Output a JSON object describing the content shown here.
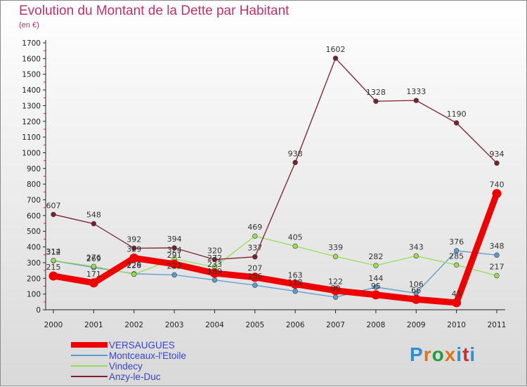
{
  "header": {
    "title": "Evolution du Montant de la Dette par Habitant",
    "unit": "(en €)"
  },
  "brand": {
    "text": "Proxiti",
    "colors": [
      "#2a8fd6",
      "#e0731c",
      "#1f9e3a",
      "#e0731c",
      "#2a8fd6",
      "#d12a2a",
      "#2a8fd6"
    ]
  },
  "chart_data": {
    "type": "line",
    "title": "Evolution du Montant de la Dette par Habitant",
    "xlabel": "",
    "ylabel": "(en €)",
    "categories": [
      "2000",
      "2001",
      "2002",
      "2003",
      "2004",
      "2005",
      "2006",
      "2007",
      "2008",
      "2009",
      "2010",
      "2011"
    ],
    "ylim": [
      0,
      1700
    ],
    "yticks": [
      0,
      100,
      200,
      300,
      400,
      500,
      600,
      700,
      800,
      900,
      1000,
      1100,
      1200,
      1300,
      1400,
      1500,
      1600,
      1700
    ],
    "grid": false,
    "legend_position": "bottom",
    "series": [
      {
        "name": "VERSAUGUES",
        "color": "#ee0000",
        "width": 9,
        "values": [
          215,
          171,
          329,
          291,
          233,
          207,
          163,
          122,
          95,
          66,
          45,
          740
        ],
        "labels": [
          "215",
          "171",
          "329",
          "291",
          "233",
          "207",
          "163",
          "122",
          "95",
          "66",
          "45",
          "740"
        ]
      },
      {
        "name": "Montceaux-l'Etoile",
        "color": "#5a9bcf",
        "width": 1.3,
        "values": [
          312,
          269,
          229,
          222,
          189,
          156,
          118,
          80,
          144,
          106,
          376,
          348
        ],
        "labels": [
          "312",
          "269",
          "229",
          "222",
          "189",
          "156",
          "118",
          "80",
          "144",
          "106",
          "376",
          "348"
        ]
      },
      {
        "name": "Vindecy",
        "color": "#99dd55",
        "width": 1.3,
        "values": [
          314,
          276,
          226,
          324,
          272,
          469,
          405,
          339,
          282,
          343,
          285,
          217
        ],
        "labels": [
          "314",
          "276",
          "226",
          "324",
          "272",
          "469",
          "405",
          "339",
          "282",
          "343",
          "285",
          "217"
        ]
      },
      {
        "name": "Anzy-le-Duc",
        "color": "#7a1f2b",
        "width": 1.3,
        "values": [
          607,
          548,
          392,
          394,
          320,
          337,
          938,
          1602,
          1328,
          1333,
          1190,
          934
        ],
        "labels": [
          "607",
          "548",
          "392",
          "394",
          "320",
          "337",
          "938",
          "1602",
          "1328",
          "1333",
          "1190",
          "934"
        ]
      }
    ]
  }
}
